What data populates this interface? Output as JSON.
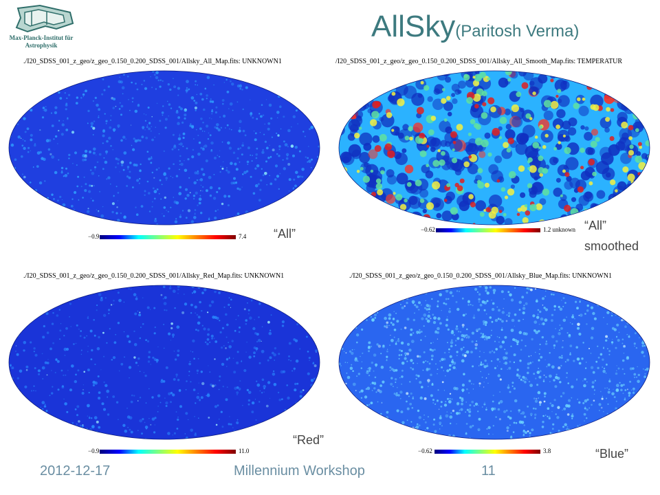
{
  "logo": {
    "line1": "Max-Planck-Institut für",
    "line2": "Astrophysik"
  },
  "title": {
    "main": "AllSky",
    "sub": "(Paritosh Verma)"
  },
  "panels": [
    {
      "fits": "./I20_SDSS_001_z_geo/z_geo_0.150_0.200_SDSS_001/Allsky_All_Map.fits: UNKNOWN1",
      "min": "−0.9",
      "max": "7.4",
      "label": "“All”"
    },
    {
      "fits": "/I20_SDSS_001_z_geo/z_geo_0.150_0.200_SDSS_001/Allsky_All_Smooth_Map.fits: TEMPERATUR",
      "min": "−0.62",
      "max": "1.2 unknown",
      "label": "“All”",
      "label2": "smoothed"
    },
    {
      "fits": "./I20_SDSS_001_z_geo/z_geo_0.150_0.200_SDSS_001/Allsky_Red_Map.fits: UNKNOWN1",
      "min": "−0.9",
      "max": "11.0",
      "label": "“Red”"
    },
    {
      "fits": "./I20_SDSS_001_z_geo/z_geo_0.150_0.200_SDSS_001/Allsky_Blue_Map.fits: UNKNOWN1",
      "min": "−0.62",
      "max": "3.8",
      "label": "“Blue”"
    }
  ],
  "footer": {
    "date": "2012-12-17",
    "event": "Millennium Workshop",
    "page": "11"
  },
  "colors": {
    "title": "#3d7a7f",
    "footer": "#6a8ea2",
    "map_base": "#1a3adf"
  }
}
